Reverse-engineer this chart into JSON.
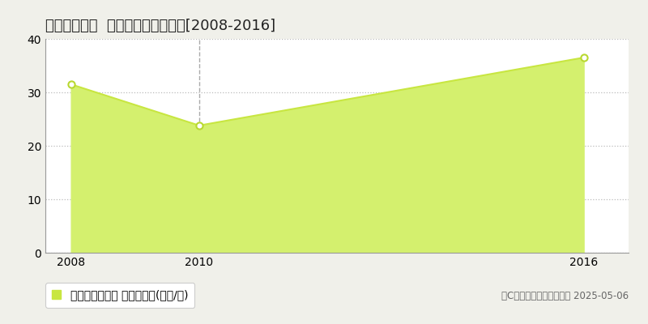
{
  "title": "高崎市井野町  マンション価格推移[2008-2016]",
  "years": [
    2008,
    2010,
    2016
  ],
  "values": [
    31.5,
    23.8,
    36.5
  ],
  "xlim": [
    2007.6,
    2016.7
  ],
  "ylim": [
    0,
    40
  ],
  "yticks": [
    0,
    10,
    20,
    30,
    40
  ],
  "xticks": [
    2008,
    2010,
    2016
  ],
  "line_color": "#c8e641",
  "fill_color": "#d4f06e",
  "fill_alpha": 1.0,
  "marker_color": "#ffffff",
  "marker_edge_color": "#b8d830",
  "grid_color": "#bbbbbb",
  "plot_bg_color": "#ffffff",
  "fig_bg_color": "#f0f0ea",
  "legend_label": "マンション価格 平均坪単価(万円/坪)",
  "legend_marker_color": "#c8e641",
  "copyright_text": "（C）土地価格ドットコム 2025-05-06",
  "vline_x": 2010,
  "vline_color": "#aaaaaa",
  "title_fontsize": 13,
  "tick_fontsize": 10,
  "legend_fontsize": 10
}
